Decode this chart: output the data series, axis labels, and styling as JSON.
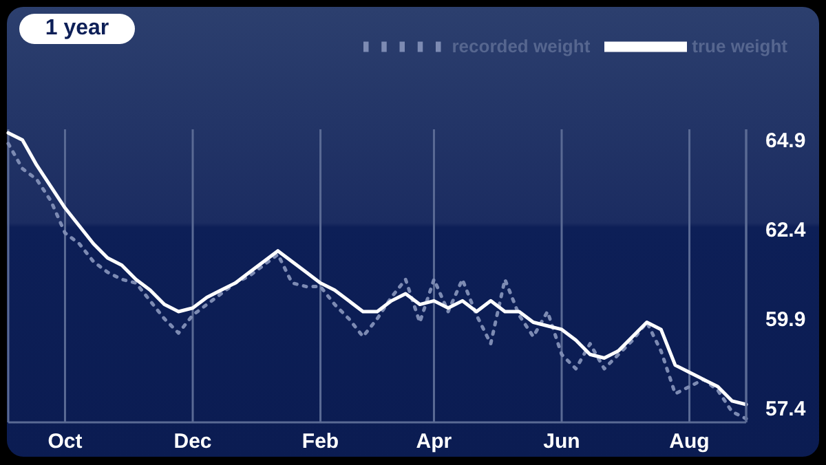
{
  "chart_data": {
    "type": "line",
    "annotations": [
      "1 year"
    ],
    "categories": [
      null,
      null,
      null,
      null,
      "Oct",
      null,
      null,
      null,
      null,
      null,
      null,
      null,
      null,
      "Dec",
      null,
      null,
      null,
      null,
      null,
      null,
      null,
      null,
      "Feb",
      null,
      null,
      null,
      null,
      null,
      null,
      null,
      "Apr",
      null,
      null,
      null,
      null,
      null,
      null,
      null,
      null,
      "Jun",
      null,
      null,
      null,
      null,
      null,
      null,
      null,
      null,
      "Aug",
      null,
      null,
      null,
      null
    ],
    "ylim": [
      57.0,
      65.2
    ],
    "yticks": [
      57.4,
      59.9,
      62.4,
      64.9
    ],
    "grid": "x",
    "legend": "top",
    "marker": "none",
    "series": [
      {
        "name": "recorded weight",
        "color": "#7d8bb3",
        "line_style": "dotted",
        "values": [
          64.8,
          64.1,
          63.8,
          63.2,
          62.3,
          62.0,
          61.5,
          61.2,
          61.0,
          60.9,
          60.4,
          59.9,
          59.5,
          60.0,
          60.3,
          60.6,
          60.9,
          61.1,
          61.4,
          61.7,
          60.9,
          60.8,
          60.8,
          60.3,
          59.9,
          59.4,
          59.9,
          60.5,
          61.0,
          59.8,
          61.0,
          60.1,
          61.0,
          60.0,
          59.2,
          61.0,
          60.0,
          59.4,
          60.1,
          58.9,
          58.5,
          59.2,
          58.5,
          58.9,
          59.3,
          59.8,
          59.0,
          57.8,
          58.0,
          58.2,
          57.9,
          57.3,
          57.1
        ]
      },
      {
        "name": "true weight",
        "color": "#ffffff",
        "line_style": "solid",
        "values": [
          65.1,
          64.9,
          64.2,
          63.6,
          63.0,
          62.5,
          62.0,
          61.6,
          61.4,
          61.0,
          60.7,
          60.3,
          60.1,
          60.2,
          60.5,
          60.7,
          60.9,
          61.2,
          61.5,
          61.8,
          61.5,
          61.2,
          60.9,
          60.7,
          60.4,
          60.1,
          60.1,
          60.4,
          60.6,
          60.3,
          60.4,
          60.2,
          60.4,
          60.1,
          60.4,
          60.1,
          60.1,
          59.8,
          59.7,
          59.6,
          59.3,
          58.9,
          58.8,
          59.0,
          59.4,
          59.8,
          59.6,
          58.6,
          58.4,
          58.2,
          58.0,
          57.6,
          57.5
        ]
      }
    ]
  }
}
